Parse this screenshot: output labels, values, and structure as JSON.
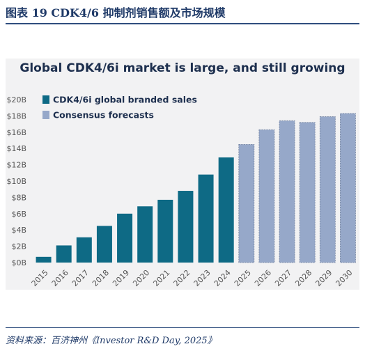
{
  "figure_caption": "图表 19    CDK4/6 抑制剂销售额及市场规模",
  "source_note": "资料来源：百济神州《Investor R&D Day, 2025》",
  "colors": {
    "actual": "#0e6a85",
    "forecast": "#96a8c9",
    "forecast_border": "#6f7f9c",
    "panel": "#f2f2f3",
    "title": "#1d2f4e"
  },
  "chart_data": {
    "type": "bar",
    "title": "Global CDK4/6i market is large, and still growing",
    "xlabel": "",
    "ylabel": "",
    "ylim": [
      0,
      20
    ],
    "y_ticks": [
      "$0B",
      "$2B",
      "$4B",
      "$6B",
      "$8B",
      "$10B",
      "$12B",
      "$14B",
      "$16B",
      "$18B",
      "$20B"
    ],
    "grid": false,
    "legend_position": "top-left",
    "categories": [
      "2015",
      "2016",
      "2017",
      "2018",
      "2019",
      "2020",
      "2021",
      "2022",
      "2023",
      "2024",
      "2025",
      "2026",
      "2027",
      "2028",
      "2029",
      "2030"
    ],
    "series": [
      {
        "name": "CDK4/6i global branded sales",
        "values": [
          0.7,
          2.1,
          3.1,
          4.5,
          6.0,
          6.9,
          7.7,
          8.8,
          10.8,
          12.9,
          null,
          null,
          null,
          null,
          null,
          null
        ]
      },
      {
        "name": "Consensus forecasts",
        "values": [
          null,
          null,
          null,
          null,
          null,
          null,
          null,
          null,
          null,
          null,
          14.5,
          16.3,
          17.4,
          17.2,
          17.9,
          18.3
        ]
      }
    ]
  }
}
